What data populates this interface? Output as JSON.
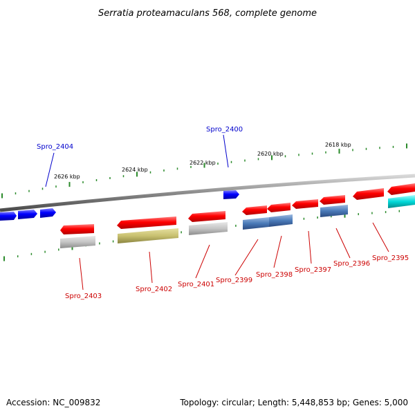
{
  "title": "Serratia proteamaculans 568, complete genome",
  "footer": {
    "accession": "Accession: NC_009832",
    "summary": "Topology: circular; Length: 5,448,853 bp; Genes: 5,000"
  },
  "colors": {
    "forward_label": "#0000cc",
    "reverse_label": "#cc0000",
    "backbone": "#8a8a8a",
    "tick": "#2a8a2a",
    "gene_red": "#ff0000",
    "gene_blue": "#0000ff"
  },
  "scale_labels": [
    "2626 kbp",
    "2624 kbp",
    "2622 kbp",
    "2620 kbp",
    "2618 kbp"
  ],
  "genes": [
    {
      "id": "Spro_2404",
      "strand": "forward",
      "label": "Spro_2404"
    },
    {
      "id": "Spro_2400",
      "strand": "forward",
      "label": "Spro_2400"
    },
    {
      "id": "Spro_2403",
      "strand": "reverse",
      "label": "Spro_2403"
    },
    {
      "id": "Spro_2402",
      "strand": "reverse",
      "label": "Spro_2402"
    },
    {
      "id": "Spro_2401",
      "strand": "reverse",
      "label": "Spro_2401"
    },
    {
      "id": "Spro_2399",
      "strand": "reverse",
      "label": "Spro_2399"
    },
    {
      "id": "Spro_2398",
      "strand": "reverse",
      "label": "Spro_2398"
    },
    {
      "id": "Spro_2397",
      "strand": "reverse",
      "label": "Spro_2397"
    },
    {
      "id": "Spro_2396",
      "strand": "reverse",
      "label": "Spro_2396"
    },
    {
      "id": "Spro_2395",
      "strand": "reverse",
      "label": "Spro_2395"
    }
  ]
}
